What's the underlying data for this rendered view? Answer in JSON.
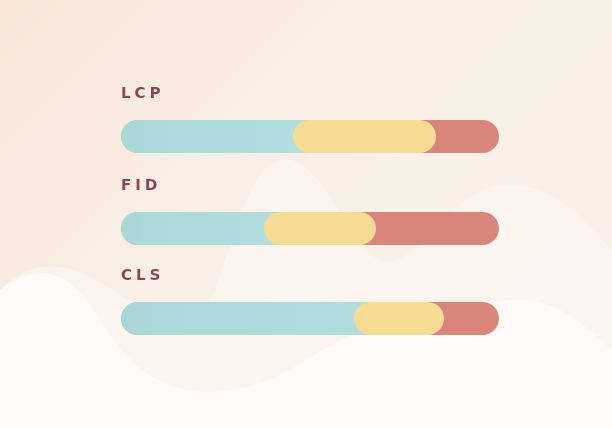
{
  "metrics": [
    {
      "label": "LCP",
      "good_fraction": 0.455,
      "needs_improvement_end": 0.833
    },
    {
      "label": "FID",
      "good_fraction": 0.378,
      "needs_improvement_end": 0.675
    },
    {
      "label": "CLS",
      "good_fraction": 0.616,
      "needs_improvement_end": 0.854
    }
  ],
  "colors": {
    "good": "#a9d8d6",
    "needs_improvement": "#f6db94",
    "poor": "#d8867b",
    "label": "#87485c"
  }
}
